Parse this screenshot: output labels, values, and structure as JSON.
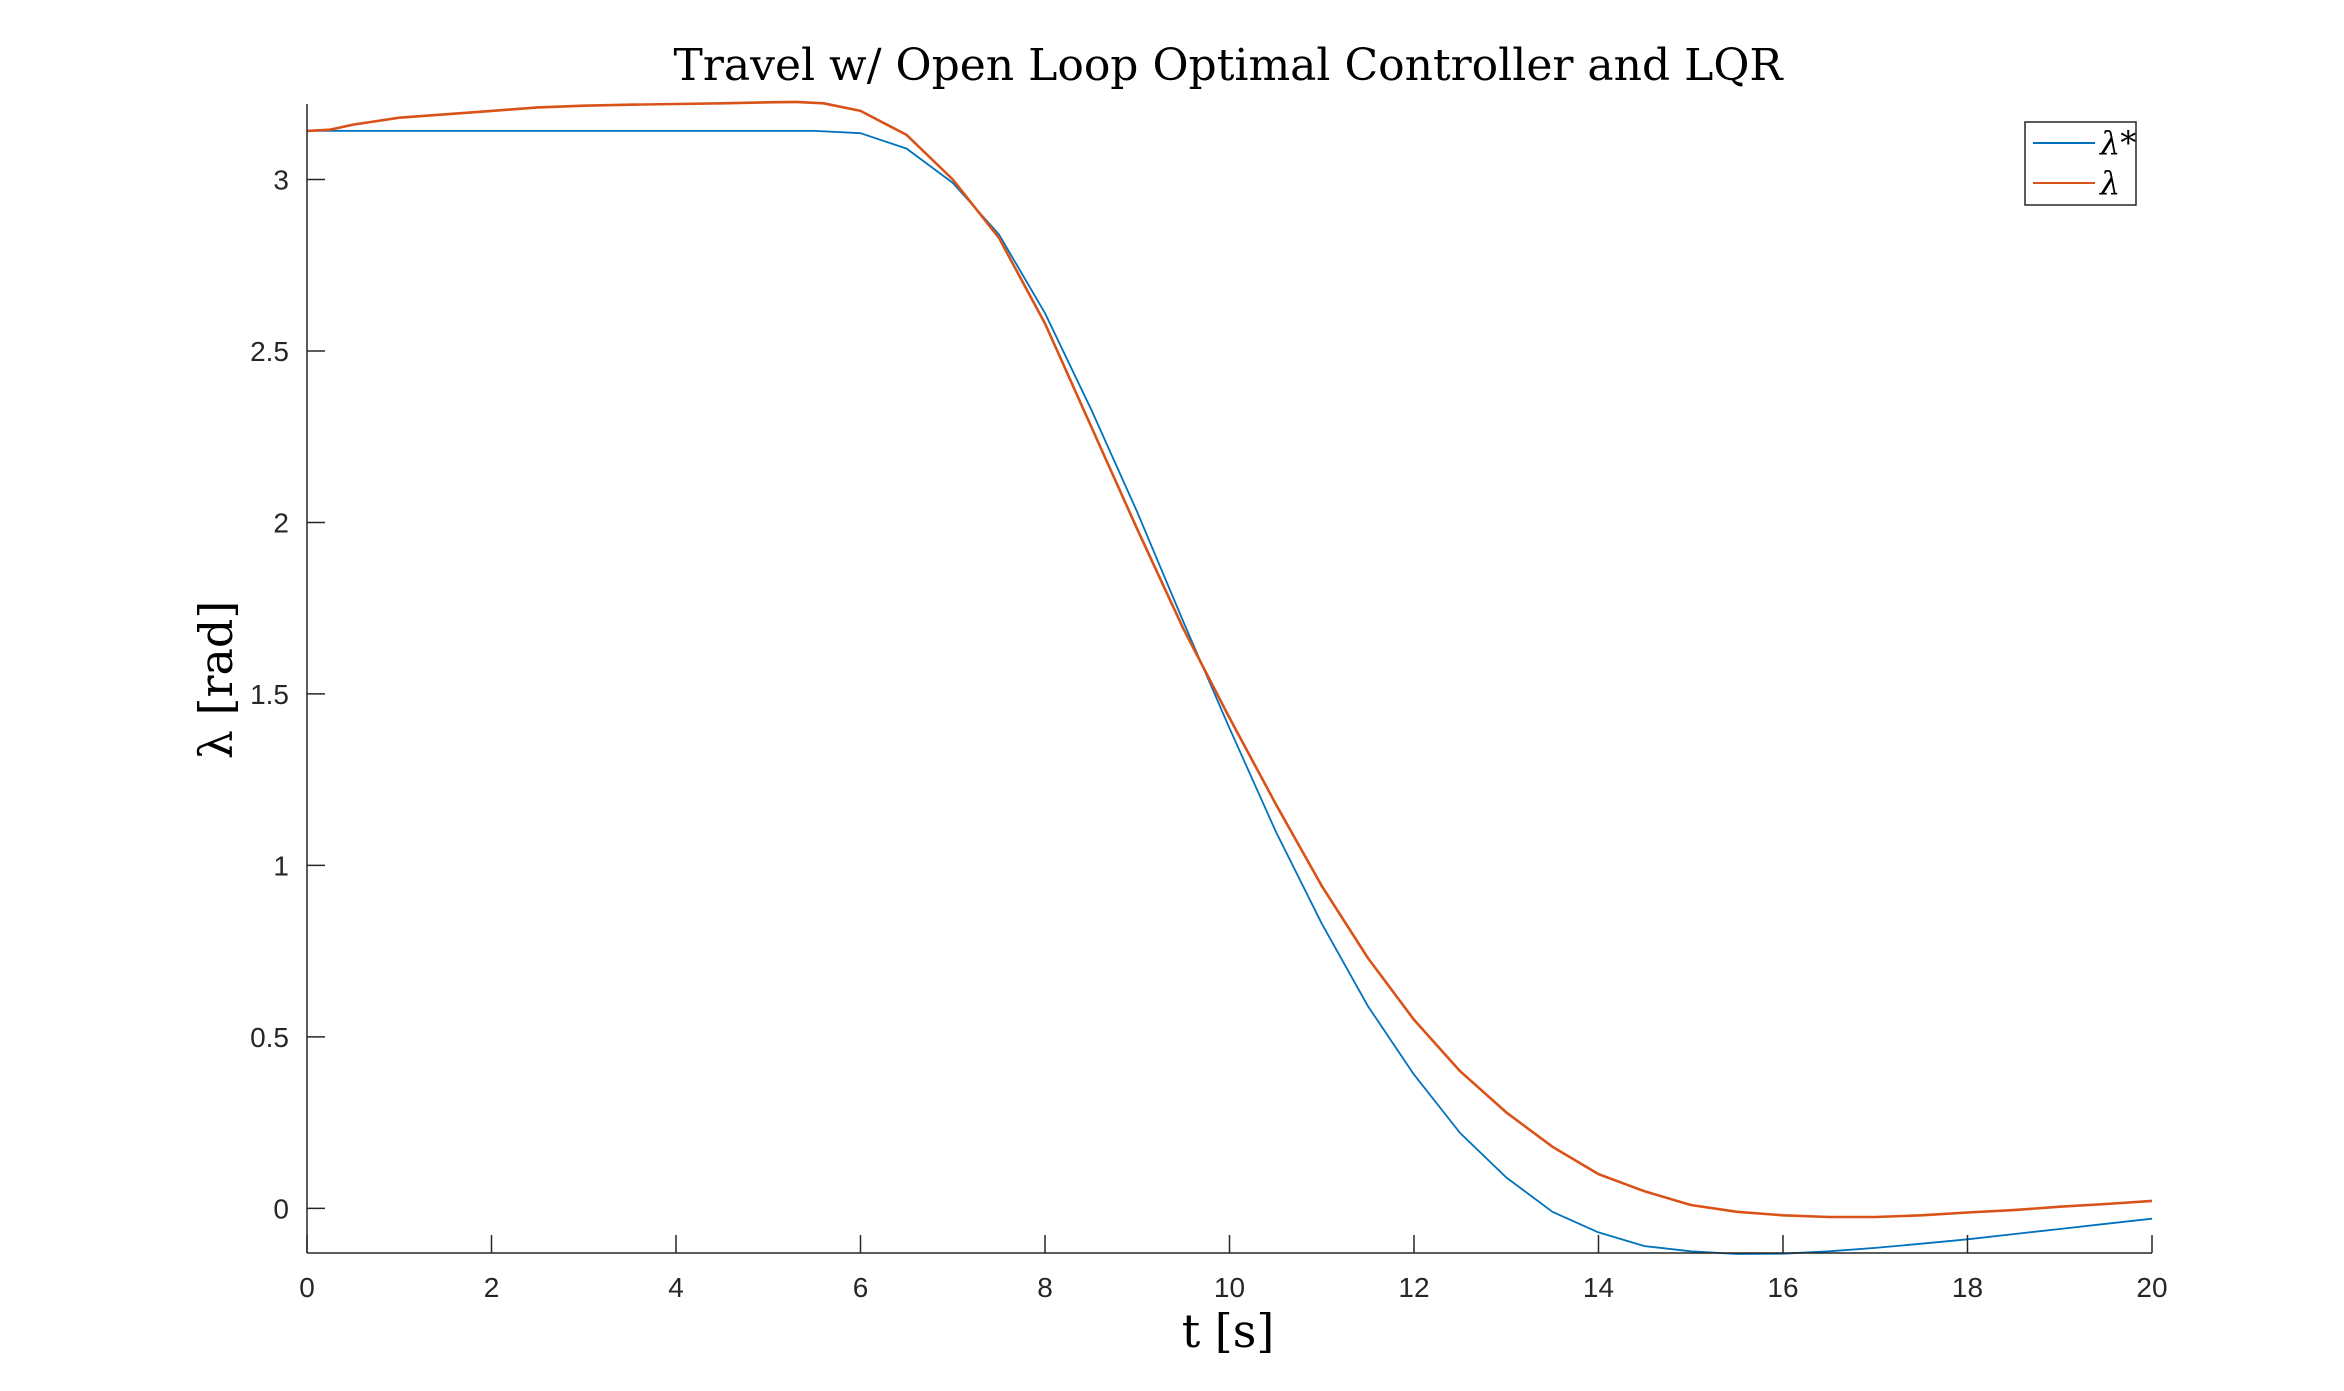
{
  "chart_data": {
    "type": "line",
    "title": "Travel w/ Open Loop Optimal Controller and LQR",
    "xlabel": "t [s]",
    "ylabel": "λ [rad]",
    "xlim": [
      0,
      20
    ],
    "ylim": [
      -0.13,
      3.22
    ],
    "xticks": [
      0,
      2,
      4,
      6,
      8,
      10,
      12,
      14,
      16,
      18,
      20
    ],
    "yticks": [
      0,
      0.5,
      1,
      1.5,
      2,
      2.5,
      3
    ],
    "xtick_labels": [
      "0",
      "2",
      "4",
      "6",
      "8",
      "10",
      "12",
      "14",
      "16",
      "18",
      "20"
    ],
    "ytick_labels": [
      "0",
      "0.5",
      "1",
      "1.5",
      "2",
      "2.5",
      "3"
    ],
    "grid": false,
    "legend_position": "top-right",
    "series": [
      {
        "name": "λ*",
        "color": "#0072BD",
        "points": [
          [
            0,
            3.1416
          ],
          [
            1,
            3.1416
          ],
          [
            2,
            3.1416
          ],
          [
            3,
            3.1416
          ],
          [
            4,
            3.1416
          ],
          [
            5,
            3.1416
          ],
          [
            5.5,
            3.1416
          ],
          [
            6,
            3.135
          ],
          [
            6.5,
            3.09
          ],
          [
            7,
            2.99
          ],
          [
            7.5,
            2.84
          ],
          [
            8,
            2.61
          ],
          [
            8.5,
            2.33
          ],
          [
            9,
            2.03
          ],
          [
            9.5,
            1.71
          ],
          [
            10,
            1.4
          ],
          [
            10.5,
            1.1
          ],
          [
            11,
            0.83
          ],
          [
            11.5,
            0.59
          ],
          [
            12,
            0.39
          ],
          [
            12.5,
            0.22
          ],
          [
            13,
            0.09
          ],
          [
            13.5,
            -0.01
          ],
          [
            14,
            -0.07
          ],
          [
            14.5,
            -0.11
          ],
          [
            15,
            -0.125
          ],
          [
            15.5,
            -0.133
          ],
          [
            16,
            -0.132
          ],
          [
            16.5,
            -0.125
          ],
          [
            17,
            -0.115
          ],
          [
            17.5,
            -0.103
          ],
          [
            18,
            -0.09
          ],
          [
            18.5,
            -0.075
          ],
          [
            19,
            -0.06
          ],
          [
            19.5,
            -0.045
          ],
          [
            20,
            -0.03
          ]
        ]
      },
      {
        "name": "λ",
        "color": "#D95319",
        "points": [
          [
            0,
            3.1416
          ],
          [
            0.25,
            3.145
          ],
          [
            0.5,
            3.16
          ],
          [
            1,
            3.18
          ],
          [
            1.5,
            3.19
          ],
          [
            2,
            3.2
          ],
          [
            2.5,
            3.21
          ],
          [
            3,
            3.215
          ],
          [
            3.5,
            3.218
          ],
          [
            4,
            3.22
          ],
          [
            4.5,
            3.222
          ],
          [
            5,
            3.225
          ],
          [
            5.3,
            3.226
          ],
          [
            5.6,
            3.222
          ],
          [
            6,
            3.2
          ],
          [
            6.5,
            3.13
          ],
          [
            7,
            3.0
          ],
          [
            7.5,
            2.83
          ],
          [
            8,
            2.58
          ],
          [
            8.5,
            2.28
          ],
          [
            9,
            1.98
          ],
          [
            9.5,
            1.69
          ],
          [
            10,
            1.43
          ],
          [
            10.5,
            1.18
          ],
          [
            11,
            0.94
          ],
          [
            11.5,
            0.73
          ],
          [
            12,
            0.55
          ],
          [
            12.5,
            0.4
          ],
          [
            13,
            0.28
          ],
          [
            13.5,
            0.18
          ],
          [
            14,
            0.1
          ],
          [
            14.5,
            0.05
          ],
          [
            15,
            0.01
          ],
          [
            15.5,
            -0.01
          ],
          [
            16,
            -0.02
          ],
          [
            16.5,
            -0.025
          ],
          [
            17,
            -0.025
          ],
          [
            17.5,
            -0.02
          ],
          [
            18,
            -0.012
          ],
          [
            18.5,
            -0.005
          ],
          [
            19,
            0.005
          ],
          [
            19.5,
            0.013
          ],
          [
            20,
            0.022
          ]
        ]
      }
    ]
  }
}
